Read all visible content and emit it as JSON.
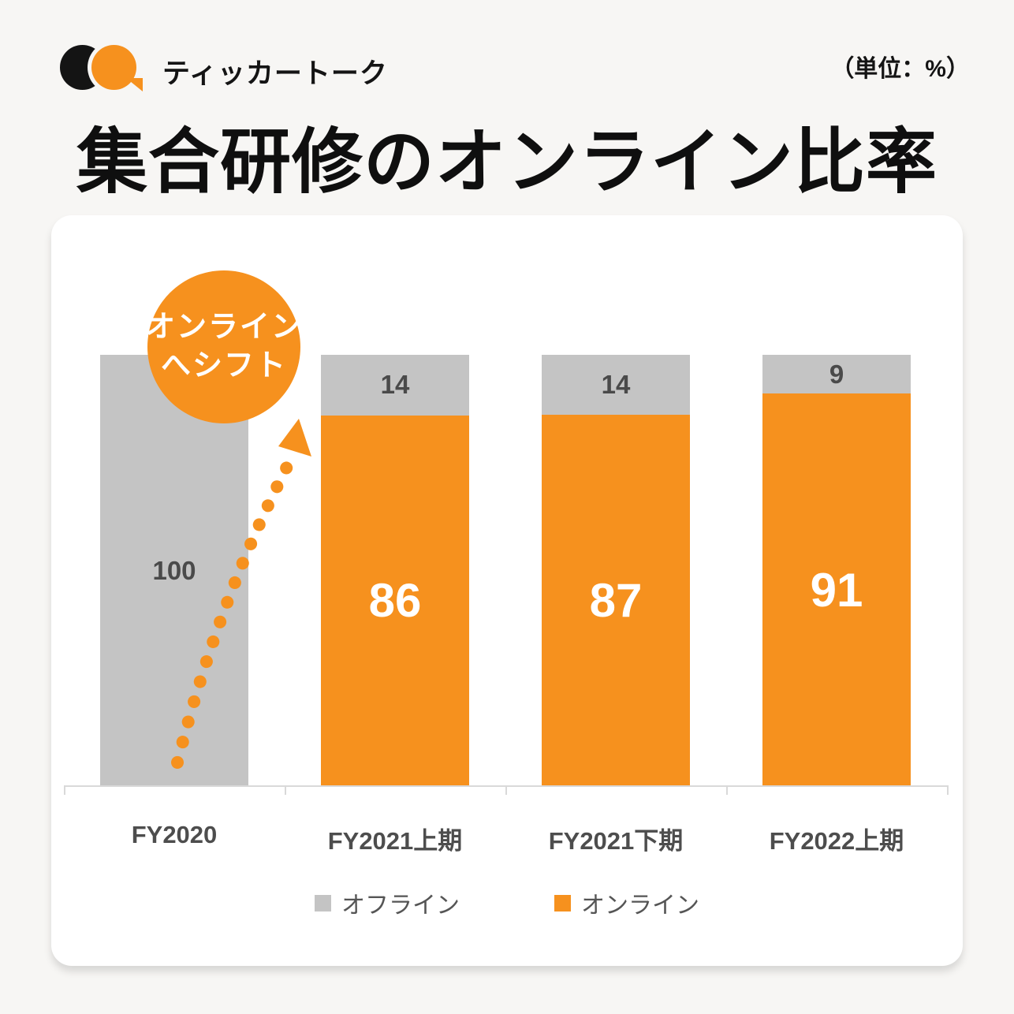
{
  "header": {
    "logo_text": "ティッカートーク",
    "unit_label": "（単位：%）"
  },
  "title": "集合研修のオンライン比率",
  "colors": {
    "background": "#F7F6F4",
    "card": "#FFFFFF",
    "accent_orange": "#F6911E",
    "offline_gray": "#C4C4C4",
    "axis_line": "#D9D9D9",
    "title_text": "#0F0F0F",
    "label_gray": "#4D4D4D"
  },
  "chart_data": {
    "type": "bar",
    "stacked": true,
    "title": "集合研修のオンライン比率",
    "unit": "%",
    "ylim": [
      0,
      100
    ],
    "grid": false,
    "legend_position": "bottom",
    "categories": [
      "FY2020",
      "FY2021上期",
      "FY2021下期",
      "FY2022上期"
    ],
    "series": [
      {
        "name": "オフライン",
        "color": "#C4C4C4",
        "label_color": "#4A4A4A",
        "values": [
          100,
          14,
          14,
          9
        ]
      },
      {
        "name": "オンライン",
        "color": "#F6911E",
        "label_color": "#FFFFFF",
        "values": [
          0,
          86,
          87,
          91
        ]
      }
    ],
    "annotation": {
      "line1": "オンライン",
      "line2": "へシフト",
      "arrow": "dotted arc from bottom of FY2020 bar up toward FY2021上期 bar"
    }
  }
}
